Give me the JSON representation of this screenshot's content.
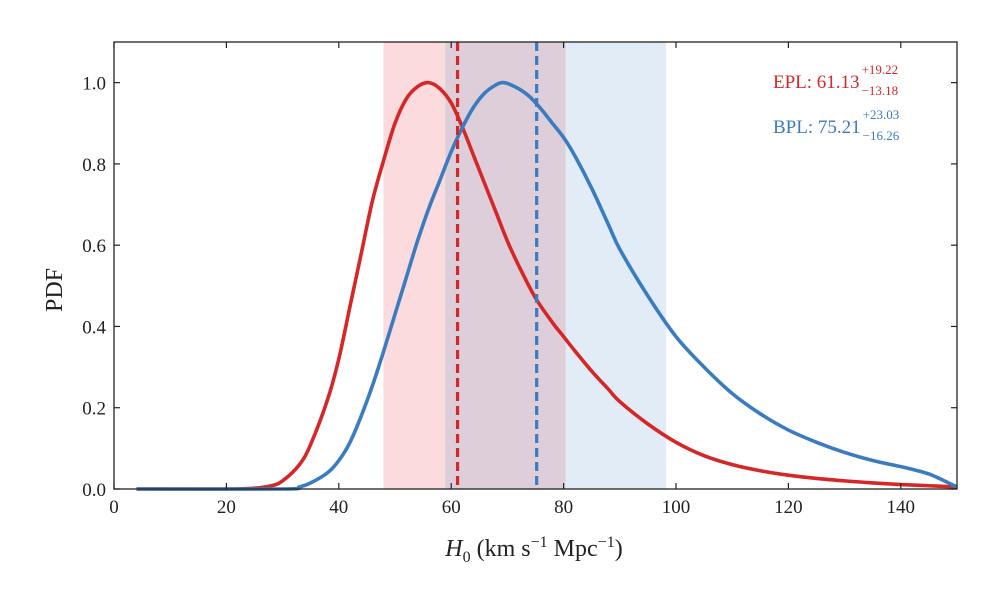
{
  "chart_data": {
    "type": "line",
    "xlabel": {
      "symbol": "H",
      "subscript": "0",
      "units_prefix": " (km s",
      "units_exp1": "−1",
      "units_mid": " Mpc",
      "units_exp2": "−1",
      "units_suffix": ")"
    },
    "ylabel": "PDF",
    "xlim": [
      0,
      150
    ],
    "ylim": [
      0,
      1.1
    ],
    "xticks": [
      0,
      20,
      40,
      60,
      80,
      100,
      120,
      140
    ],
    "xtick_labels": [
      "0",
      "20",
      "40",
      "60",
      "80",
      "100",
      "120",
      "140"
    ],
    "yticks": [
      0.0,
      0.2,
      0.4,
      0.6,
      0.8,
      1.0
    ],
    "ytick_labels": [
      "0.0",
      "0.2",
      "0.4",
      "0.6",
      "0.8",
      "1.0"
    ],
    "series": [
      {
        "name": "EPL",
        "color": "#d62728",
        "median": 61.13,
        "interval": [
          47.95,
          80.35
        ],
        "legend": {
          "label": "EPL: 61.13",
          "upper": "+19.22",
          "lower": "−13.18"
        },
        "x": [
          4,
          20,
          25,
          28,
          30,
          33,
          35,
          38,
          40,
          42,
          44,
          46,
          48,
          50,
          52,
          54,
          56,
          58,
          60,
          62,
          64,
          66,
          68,
          70,
          72,
          75,
          78,
          80,
          82,
          85,
          88,
          90,
          95,
          100,
          105,
          110,
          115,
          120,
          125,
          130,
          135,
          140,
          145,
          150
        ],
        "y": [
          0.0,
          0.0,
          0.002,
          0.008,
          0.02,
          0.06,
          0.11,
          0.22,
          0.32,
          0.45,
          0.58,
          0.71,
          0.81,
          0.9,
          0.96,
          0.99,
          1.0,
          0.985,
          0.95,
          0.89,
          0.82,
          0.75,
          0.68,
          0.61,
          0.55,
          0.47,
          0.41,
          0.375,
          0.34,
          0.29,
          0.245,
          0.215,
          0.16,
          0.115,
          0.082,
          0.06,
          0.045,
          0.034,
          0.026,
          0.02,
          0.015,
          0.011,
          0.008,
          0.005
        ]
      },
      {
        "name": "BPL",
        "color": "#3a7cbf",
        "median": 75.21,
        "interval": [
          58.95,
          98.24
        ],
        "legend": {
          "label": "BPL: 75.21",
          "upper": "+23.03",
          "lower": "−16.26"
        },
        "x": [
          4,
          30,
          33,
          35,
          38,
          40,
          42,
          44,
          46,
          48,
          50,
          52,
          54,
          56,
          58,
          60,
          62,
          64,
          66,
          68,
          69,
          70,
          72,
          74,
          76,
          78,
          80,
          82,
          85,
          88,
          90,
          95,
          100,
          105,
          110,
          115,
          120,
          125,
          130,
          135,
          140,
          143,
          145,
          147,
          150
        ],
        "y": [
          0.0,
          0.0,
          0.005,
          0.015,
          0.04,
          0.07,
          0.115,
          0.18,
          0.255,
          0.34,
          0.43,
          0.52,
          0.61,
          0.69,
          0.76,
          0.83,
          0.89,
          0.94,
          0.975,
          0.995,
          1.0,
          0.998,
          0.985,
          0.965,
          0.935,
          0.9,
          0.865,
          0.82,
          0.74,
          0.65,
          0.59,
          0.475,
          0.375,
          0.3,
          0.235,
          0.185,
          0.145,
          0.115,
          0.09,
          0.07,
          0.055,
          0.045,
          0.037,
          0.025,
          0.005
        ]
      }
    ]
  }
}
